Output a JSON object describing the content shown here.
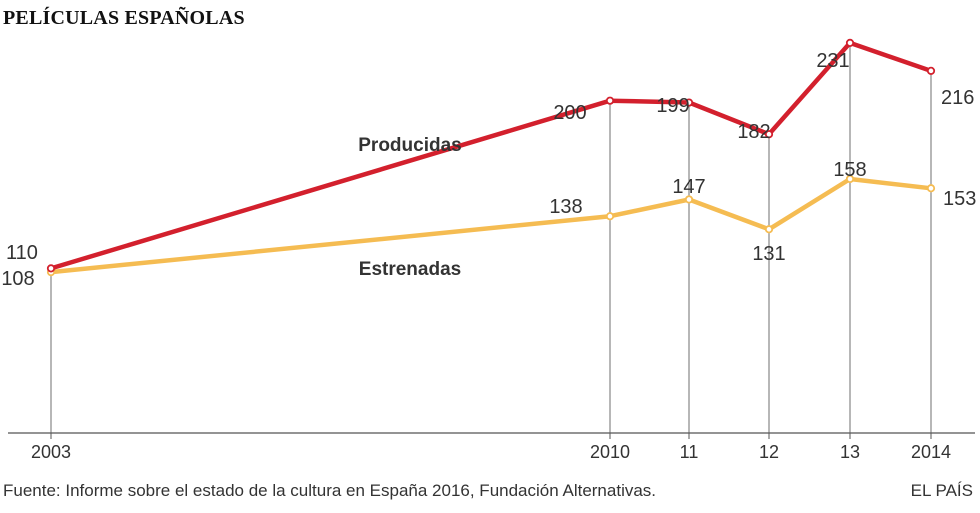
{
  "title": "PELÍCULAS ESPAÑOLAS",
  "chart_data": {
    "type": "line",
    "title": "PELÍCULAS ESPAÑOLAS",
    "xlabel": "",
    "ylabel": "",
    "x": [
      2003,
      2010,
      2011,
      2012,
      2013,
      2014
    ],
    "tick_labels": [
      "2003",
      "2010",
      "11",
      "12",
      "13",
      "2014"
    ],
    "grid": false,
    "legend": "inline labels on series",
    "series": [
      {
        "name": "Producidas",
        "color": "#d3202d",
        "values": [
          110,
          200,
          199,
          182,
          231,
          216
        ],
        "labels": [
          "110",
          "200",
          "199",
          "182",
          "231",
          "216"
        ]
      },
      {
        "name": "Estrenadas",
        "color": "#f5bc52",
        "values": [
          108,
          138,
          147,
          131,
          158,
          153
        ],
        "labels": [
          "108",
          "138",
          "147",
          "131",
          "158",
          "153"
        ]
      }
    ]
  },
  "footer": {
    "source": "Fuente: Informe sobre el estado de la cultura en España 2016, Fundación Alternativas.",
    "brand": "EL PAÍS"
  }
}
